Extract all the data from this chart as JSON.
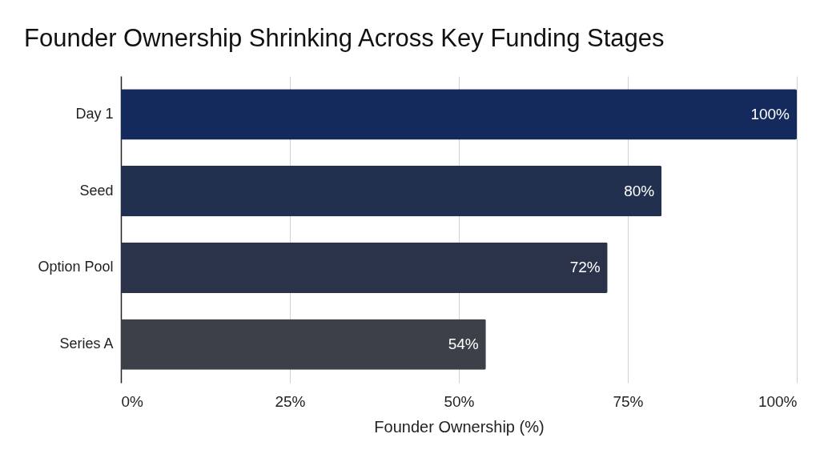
{
  "chart_data": {
    "type": "bar",
    "orientation": "horizontal",
    "title": "Founder Ownership Shrinking Across Key Funding Stages",
    "xlabel": "Founder Ownership (%)",
    "categories": [
      "Day 1",
      "Seed",
      "Option Pool",
      "Series A"
    ],
    "values": [
      100,
      80,
      72,
      54
    ],
    "colors": [
      "#142a5c",
      "#22304f",
      "#2a3349",
      "#3c4049"
    ],
    "value_labels": [
      "100%",
      "80%",
      "72%",
      "54%"
    ],
    "xlim": [
      0,
      100
    ],
    "xticks": [
      {
        "value": 0,
        "label": "0%"
      },
      {
        "value": 25,
        "label": "25%"
      },
      {
        "value": 50,
        "label": "50%"
      },
      {
        "value": 75,
        "label": "75%"
      },
      {
        "value": 100,
        "label": "100%"
      }
    ],
    "grid": "x"
  }
}
